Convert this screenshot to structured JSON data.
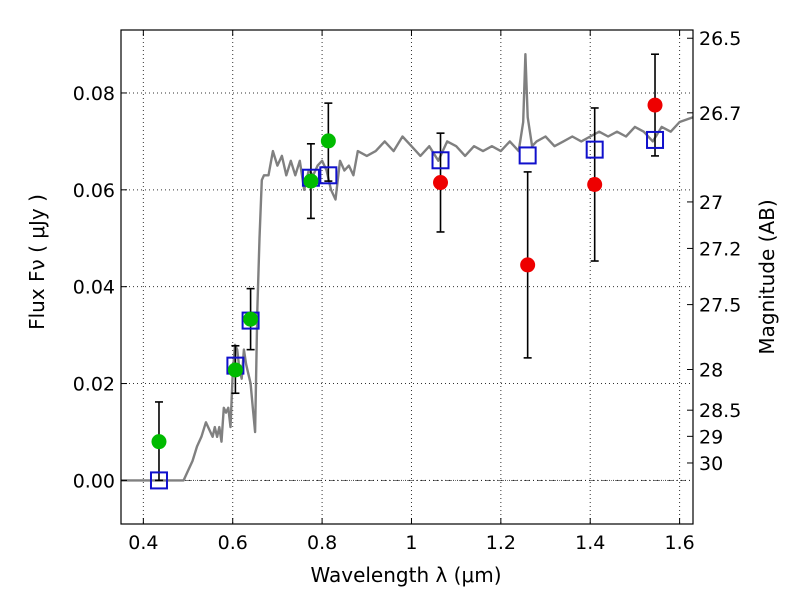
{
  "chart_data": {
    "type": "scatter",
    "xlabel": "Wavelength  λ (μm)",
    "ylabel": "Flux  Fν  ( μJy )",
    "ylabel_right": "Magnitude (AB)",
    "xlim": [
      0.35,
      1.63
    ],
    "ylim": [
      -0.009,
      0.093
    ],
    "grid": true,
    "zero_line": 0.0,
    "x_ticks": [
      0.4,
      0.6,
      0.8,
      1.0,
      1.2,
      1.4,
      1.6
    ],
    "x_tick_labels": [
      "0.4",
      "0.6",
      "0.8",
      "1",
      "1.2",
      "1.4",
      "1.6"
    ],
    "y_ticks": [
      0.0,
      0.02,
      0.04,
      0.06,
      0.08
    ],
    "y_tick_labels": [
      "0.00",
      "0.02",
      "0.04",
      "0.06",
      "0.08"
    ],
    "right_axis_ticks": [
      {
        "label": "26.5",
        "flux": 0.0913
      },
      {
        "label": "26.7",
        "flux": 0.0759
      },
      {
        "label": "27",
        "flux": 0.0575
      },
      {
        "label": "27.2",
        "flux": 0.0479
      },
      {
        "label": "27.5",
        "flux": 0.0363
      },
      {
        "label": "28",
        "flux": 0.0229
      },
      {
        "label": "28.5",
        "flux": 0.0145
      },
      {
        "label": "29",
        "flux": 0.0091
      },
      {
        "label": "30",
        "flux": 0.0036
      }
    ],
    "series": [
      {
        "kind": "model_sed",
        "color": "#808080",
        "x": [
          0.35,
          0.47,
          0.49,
          0.5,
          0.51,
          0.52,
          0.53,
          0.54,
          0.55,
          0.555,
          0.56,
          0.565,
          0.57,
          0.575,
          0.58,
          0.585,
          0.59,
          0.595,
          0.6,
          0.605,
          0.61,
          0.615,
          0.62,
          0.625,
          0.63,
          0.64,
          0.645,
          0.65,
          0.655,
          0.66,
          0.665,
          0.67,
          0.68,
          0.69,
          0.7,
          0.71,
          0.72,
          0.73,
          0.74,
          0.75,
          0.76,
          0.77,
          0.78,
          0.79,
          0.8,
          0.81,
          0.82,
          0.83,
          0.84,
          0.85,
          0.86,
          0.87,
          0.88,
          0.9,
          0.92,
          0.94,
          0.96,
          0.98,
          1.0,
          1.02,
          1.04,
          1.06,
          1.08,
          1.1,
          1.12,
          1.14,
          1.16,
          1.18,
          1.2,
          1.22,
          1.24,
          1.25,
          1.255,
          1.26,
          1.265,
          1.27,
          1.28,
          1.3,
          1.32,
          1.34,
          1.36,
          1.38,
          1.4,
          1.42,
          1.44,
          1.46,
          1.48,
          1.5,
          1.52,
          1.54,
          1.56,
          1.58,
          1.6,
          1.63
        ],
        "y": [
          0.0,
          0.0,
          0.0,
          0.002,
          0.004,
          0.007,
          0.009,
          0.012,
          0.01,
          0.009,
          0.011,
          0.009,
          0.011,
          0.008,
          0.015,
          0.014,
          0.015,
          0.011,
          0.022,
          0.028,
          0.027,
          0.023,
          0.021,
          0.027,
          0.024,
          0.02,
          0.015,
          0.01,
          0.035,
          0.05,
          0.062,
          0.063,
          0.063,
          0.068,
          0.065,
          0.067,
          0.063,
          0.066,
          0.063,
          0.066,
          0.06,
          0.064,
          0.063,
          0.065,
          0.066,
          0.064,
          0.06,
          0.058,
          0.066,
          0.064,
          0.065,
          0.063,
          0.068,
          0.067,
          0.068,
          0.07,
          0.068,
          0.071,
          0.069,
          0.067,
          0.069,
          0.066,
          0.07,
          0.069,
          0.067,
          0.069,
          0.068,
          0.069,
          0.068,
          0.07,
          0.068,
          0.074,
          0.088,
          0.075,
          0.072,
          0.069,
          0.07,
          0.071,
          0.069,
          0.07,
          0.071,
          0.07,
          0.071,
          0.072,
          0.071,
          0.072,
          0.071,
          0.073,
          0.072,
          0.07,
          0.073,
          0.072,
          0.074,
          0.075
        ]
      },
      {
        "kind": "model_photometry",
        "marker": "open-square",
        "color": "#1010cc",
        "x": [
          0.435,
          0.606,
          0.64,
          0.775,
          0.814,
          1.065,
          1.26,
          1.41,
          1.545
        ],
        "y": [
          0.0,
          0.0237,
          0.033,
          0.0625,
          0.063,
          0.0661,
          0.0671,
          0.0683,
          0.0703
        ]
      },
      {
        "kind": "detections",
        "marker": "filled-circle",
        "color": "#00bb00",
        "x": [
          0.435,
          0.606,
          0.64,
          0.775,
          0.814
        ],
        "y": [
          0.008,
          0.0228,
          0.0333,
          0.0618,
          0.0701
        ],
        "yerr_low": [
          0.008,
          0.0048,
          0.0063,
          0.0077,
          0.0083
        ],
        "yerr_high": [
          0.0082,
          0.005,
          0.0063,
          0.0077,
          0.0078
        ]
      },
      {
        "kind": "detections",
        "marker": "filled-circle",
        "color": "#ee0000",
        "x": [
          1.065,
          1.26,
          1.41,
          1.545
        ],
        "y": [
          0.0615,
          0.0445,
          0.0611,
          0.0775
        ],
        "yerr_low": [
          0.0102,
          0.0192,
          0.0158,
          0.0105
        ],
        "yerr_high": [
          0.0102,
          0.0192,
          0.0158,
          0.0105
        ]
      }
    ]
  }
}
